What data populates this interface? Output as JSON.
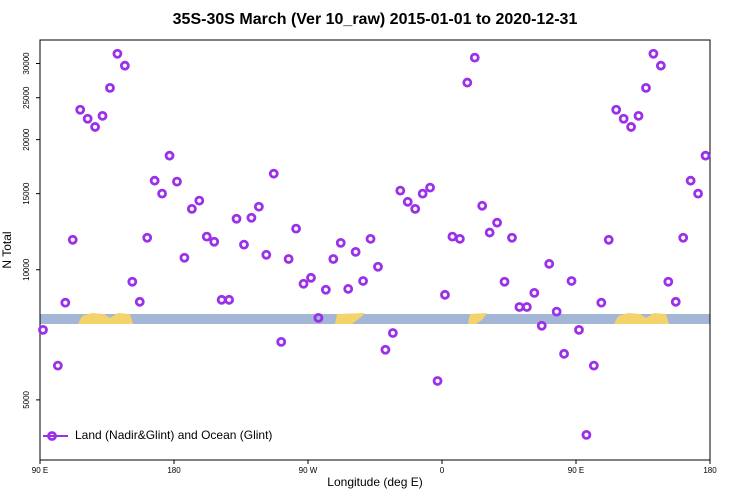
{
  "chart_data": {
    "type": "scatter",
    "title": "35S-30S March (Ver 10_raw)   2015-01-01 to 2020-12-31",
    "x_label": "Longitude (deg E)",
    "y_label": "N Total",
    "log_y": true,
    "legend_loc": "lower left",
    "xlim": [
      90,
      540
    ],
    "xticks": [
      {
        "value": 90,
        "label": "90 E"
      },
      {
        "value": 180,
        "label": "180"
      },
      {
        "value": 270,
        "label": "90 W"
      },
      {
        "value": 360,
        "label": "0"
      },
      {
        "value": 450,
        "label": "90 E"
      },
      {
        "value": 540,
        "label": "180"
      }
    ],
    "ylim": [
      3630,
      34000
    ],
    "yticks": [
      5000,
      10000,
      15000,
      20000,
      25000,
      30000
    ],
    "series": [
      {
        "name": "Land (Nadir&Glint) and Ocean (Glint)",
        "color": "#9b30e8",
        "x": [
          92,
          102,
          107,
          112,
          117,
          122,
          127,
          132,
          137,
          142,
          147,
          152,
          157,
          162,
          167,
          172,
          177,
          182,
          187,
          192,
          197,
          202,
          207,
          212,
          217,
          222,
          227,
          232,
          237,
          242,
          247,
          252,
          257,
          262,
          267,
          272,
          277,
          282,
          287,
          292,
          297,
          302,
          307,
          312,
          317,
          322,
          327,
          332,
          337,
          342,
          347,
          352,
          357,
          362,
          367,
          372,
          377,
          382,
          387,
          392,
          397,
          402,
          407,
          412,
          417,
          422,
          427,
          432,
          437,
          442,
          447,
          452,
          457,
          462,
          467,
          472,
          477,
          482,
          487,
          492,
          497,
          502,
          507,
          512,
          517,
          522,
          527,
          532,
          537
        ],
        "values": [
          7260,
          6000,
          8390,
          11730,
          23450,
          22350,
          21400,
          22700,
          26350,
          31600,
          29650,
          9380,
          8430,
          11860,
          16070,
          15000,
          18360,
          15990,
          10660,
          13830,
          14450,
          11930,
          11610,
          8520,
          8520,
          13120,
          11430,
          13190,
          13990,
          10830,
          16680,
          6810,
          10590,
          12450,
          9280,
          9580,
          7740,
          8990,
          10590,
          11540,
          9030,
          11000,
          9420,
          11790,
          10160,
          6530,
          7140,
          15240,
          14360,
          13830,
          15000,
          15490,
          5530,
          8750,
          11930,
          11790,
          27100,
          30950,
          14060,
          12190,
          12850,
          9380,
          11860,
          8200,
          8200,
          8840,
          7420,
          10320,
          8000,
          6390,
          9420,
          7260,
          4150,
          6000,
          8390,
          11730,
          23450,
          22350,
          21400,
          22700,
          26350,
          31600,
          29650,
          9380,
          8430,
          11860,
          16070,
          15000,
          18360
        ]
      }
    ]
  }
}
